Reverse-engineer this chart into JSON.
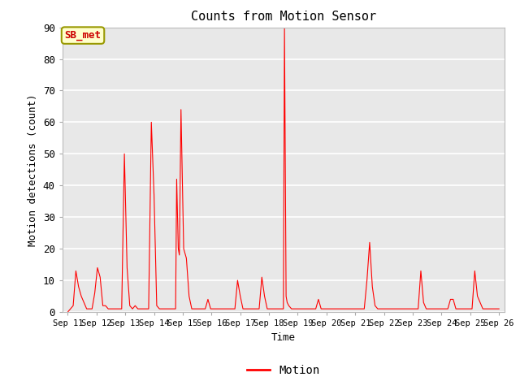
{
  "title": "Counts from Motion Sensor",
  "xlabel": "Time",
  "ylabel": "Motion detections (count)",
  "legend_label": "Motion",
  "annotation_text": "SB_met",
  "annotation_text_color": "#cc0000",
  "annotation_box_facecolor": "#ffffcc",
  "annotation_box_edgecolor": "#999900",
  "line_color": "#ff0000",
  "plot_bg_color": "#e8e8e8",
  "fig_bg_color": "#ffffff",
  "ylim": [
    0,
    90
  ],
  "yticks": [
    0,
    10,
    20,
    30,
    40,
    50,
    60,
    70,
    80,
    90
  ],
  "x_tick_labels": [
    "Sep 11",
    "Sep 12",
    "Sep 13",
    "Sep 14",
    "Sep 15",
    "Sep 16",
    "Sep 17",
    "Sep 18",
    "Sep 19",
    "Sep 20",
    "Sep 21",
    "Sep 22",
    "Sep 23",
    "Sep 24",
    "Sep 25",
    "Sep 26"
  ],
  "data_points": [
    [
      0,
      0
    ],
    [
      0.05,
      1
    ],
    [
      0.1,
      2
    ],
    [
      0.15,
      13
    ],
    [
      0.2,
      8
    ],
    [
      0.25,
      5
    ],
    [
      0.3,
      3
    ],
    [
      0.35,
      1
    ],
    [
      0.45,
      1
    ],
    [
      0.5,
      6
    ],
    [
      0.55,
      14
    ],
    [
      0.6,
      11
    ],
    [
      0.65,
      2
    ],
    [
      0.7,
      2
    ],
    [
      0.75,
      1
    ],
    [
      0.85,
      1
    ],
    [
      0.9,
      1
    ],
    [
      1.0,
      1
    ],
    [
      1.05,
      50
    ],
    [
      1.1,
      14
    ],
    [
      1.15,
      2
    ],
    [
      1.2,
      1
    ],
    [
      1.25,
      2
    ],
    [
      1.3,
      1
    ],
    [
      1.35,
      1
    ],
    [
      1.4,
      1
    ],
    [
      1.45,
      1
    ],
    [
      1.5,
      1
    ],
    [
      1.55,
      60
    ],
    [
      1.6,
      37
    ],
    [
      1.65,
      2
    ],
    [
      1.7,
      1
    ],
    [
      1.75,
      1
    ],
    [
      1.8,
      1
    ],
    [
      1.85,
      1
    ],
    [
      1.9,
      1
    ],
    [
      1.95,
      1
    ],
    [
      2.0,
      1
    ],
    [
      2.02,
      42
    ],
    [
      2.05,
      20
    ],
    [
      2.07,
      18
    ],
    [
      2.1,
      64
    ],
    [
      2.15,
      20
    ],
    [
      2.2,
      17
    ],
    [
      2.25,
      5
    ],
    [
      2.3,
      1
    ],
    [
      2.35,
      1
    ],
    [
      2.4,
      1
    ],
    [
      2.45,
      1
    ],
    [
      2.5,
      1
    ],
    [
      2.55,
      1
    ],
    [
      2.6,
      4
    ],
    [
      2.65,
      1
    ],
    [
      2.7,
      1
    ],
    [
      2.75,
      1
    ],
    [
      2.8,
      1
    ],
    [
      2.85,
      1
    ],
    [
      2.9,
      1
    ],
    [
      2.95,
      1
    ],
    [
      3.0,
      1
    ],
    [
      3.05,
      1
    ],
    [
      3.1,
      1
    ],
    [
      3.15,
      10
    ],
    [
      3.2,
      5
    ],
    [
      3.25,
      1
    ],
    [
      3.3,
      1
    ],
    [
      3.35,
      1
    ],
    [
      3.4,
      1
    ],
    [
      3.45,
      1
    ],
    [
      3.5,
      1
    ],
    [
      3.55,
      1
    ],
    [
      3.6,
      11
    ],
    [
      3.65,
      5
    ],
    [
      3.7,
      1
    ],
    [
      3.75,
      1
    ],
    [
      3.8,
      1
    ],
    [
      3.85,
      1
    ],
    [
      3.9,
      1
    ],
    [
      3.95,
      1
    ],
    [
      4.0,
      1
    ],
    [
      4.02,
      90
    ],
    [
      4.05,
      5
    ],
    [
      4.07,
      3
    ],
    [
      4.1,
      2
    ],
    [
      4.15,
      1
    ],
    [
      4.2,
      1
    ],
    [
      4.25,
      1
    ],
    [
      4.3,
      1
    ],
    [
      4.35,
      1
    ],
    [
      4.4,
      1
    ],
    [
      4.45,
      1
    ],
    [
      4.5,
      1
    ],
    [
      4.55,
      1
    ],
    [
      4.6,
      1
    ],
    [
      4.65,
      4
    ],
    [
      4.7,
      1
    ],
    [
      4.75,
      1
    ],
    [
      4.8,
      1
    ],
    [
      4.85,
      1
    ],
    [
      4.9,
      1
    ],
    [
      4.95,
      1
    ],
    [
      5.0,
      1
    ],
    [
      5.05,
      1
    ],
    [
      5.1,
      1
    ],
    [
      5.15,
      1
    ],
    [
      5.2,
      1
    ],
    [
      5.25,
      1
    ],
    [
      5.3,
      1
    ],
    [
      5.35,
      1
    ],
    [
      5.4,
      1
    ],
    [
      5.45,
      1
    ],
    [
      5.5,
      1
    ],
    [
      5.55,
      10
    ],
    [
      5.6,
      22
    ],
    [
      5.65,
      8
    ],
    [
      5.7,
      2
    ],
    [
      5.75,
      1
    ],
    [
      5.8,
      1
    ],
    [
      5.85,
      1
    ],
    [
      5.9,
      1
    ],
    [
      5.95,
      1
    ],
    [
      6.0,
      1
    ],
    [
      6.05,
      1
    ],
    [
      6.1,
      1
    ],
    [
      6.15,
      1
    ],
    [
      6.2,
      1
    ],
    [
      6.25,
      1
    ],
    [
      6.3,
      1
    ],
    [
      6.35,
      1
    ],
    [
      6.4,
      1
    ],
    [
      6.45,
      1
    ],
    [
      6.5,
      1
    ],
    [
      6.55,
      13
    ],
    [
      6.6,
      3
    ],
    [
      6.65,
      1
    ],
    [
      6.7,
      1
    ],
    [
      6.75,
      1
    ],
    [
      6.8,
      1
    ],
    [
      6.85,
      1
    ],
    [
      6.9,
      1
    ],
    [
      6.95,
      1
    ],
    [
      7.0,
      1
    ],
    [
      7.05,
      1
    ],
    [
      7.1,
      4
    ],
    [
      7.15,
      4
    ],
    [
      7.2,
      1
    ],
    [
      7.25,
      1
    ],
    [
      7.3,
      1
    ],
    [
      7.35,
      1
    ],
    [
      7.4,
      1
    ],
    [
      7.45,
      1
    ],
    [
      7.5,
      1
    ],
    [
      7.55,
      13
    ],
    [
      7.6,
      5
    ],
    [
      7.65,
      3
    ],
    [
      7.7,
      1
    ],
    [
      7.75,
      1
    ],
    [
      7.8,
      1
    ],
    [
      7.85,
      1
    ],
    [
      7.9,
      1
    ],
    [
      7.95,
      1
    ],
    [
      8.0,
      1
    ]
  ]
}
